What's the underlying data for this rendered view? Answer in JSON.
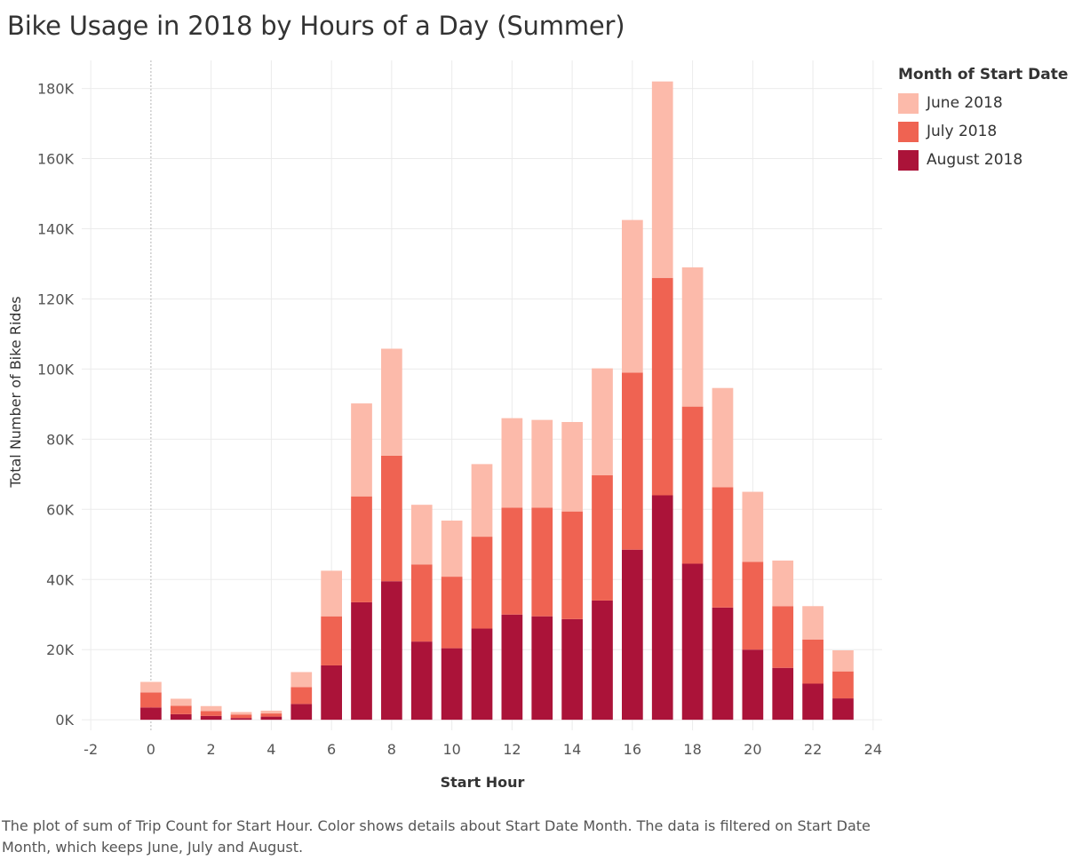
{
  "chart_data": {
    "type": "bar",
    "stacked": true,
    "title": "Bike Usage in 2018 by Hours of a Day (Summer)",
    "xlabel": "Start Hour",
    "ylabel": "Total Number of Bike Rides",
    "x": [
      0,
      1,
      2,
      3,
      4,
      5,
      6,
      7,
      8,
      9,
      10,
      11,
      12,
      13,
      14,
      15,
      16,
      17,
      18,
      19,
      20,
      21,
      22,
      23
    ],
    "x_ticks": [
      -2,
      0,
      2,
      4,
      6,
      8,
      10,
      12,
      14,
      16,
      18,
      20,
      22,
      24
    ],
    "x_tick_labels": [
      "-2",
      "0",
      "2",
      "4",
      "6",
      "8",
      "10",
      "12",
      "14",
      "16",
      "18",
      "20",
      "22",
      "24"
    ],
    "xlim": [
      -2.3,
      24.3
    ],
    "y_ticks": [
      0,
      20000,
      40000,
      60000,
      80000,
      100000,
      120000,
      140000,
      160000,
      180000
    ],
    "y_tick_labels": [
      "0K",
      "20K",
      "40K",
      "60K",
      "80K",
      "100K",
      "120K",
      "140K",
      "160K",
      "180K"
    ],
    "ylim": [
      -3000,
      188000
    ],
    "grid": true,
    "zero_line": "dotted vertical line at x=0",
    "legend_title": "Month of Start Date",
    "legend_position": "right",
    "series": [
      {
        "name": "August 2018",
        "color": "#ab1339",
        "values": [
          3500,
          1600,
          1100,
          500,
          900,
          4500,
          15500,
          33500,
          39500,
          22300,
          20400,
          26000,
          30000,
          29500,
          28700,
          34000,
          48500,
          64000,
          44500,
          32000,
          20000,
          14800,
          10300,
          6100
        ]
      },
      {
        "name": "July 2018",
        "color": "#ef6352",
        "values": [
          4300,
          2400,
          1400,
          1000,
          900,
          4800,
          14000,
          30200,
          35800,
          22000,
          20400,
          26200,
          30500,
          31000,
          30700,
          35700,
          50500,
          62000,
          44800,
          34300,
          25000,
          17600,
          12600,
          7700
        ]
      },
      {
        "name": "June 2018",
        "color": "#fcbaaa",
        "values": [
          3000,
          2000,
          1400,
          700,
          800,
          4300,
          13000,
          26500,
          30500,
          17000,
          16000,
          20700,
          25500,
          25000,
          25500,
          30500,
          43500,
          56000,
          39700,
          28300,
          20000,
          13000,
          9500,
          6000
        ]
      }
    ]
  },
  "legend": {
    "title": "Month of Start Date",
    "items": [
      {
        "label": "June 2018",
        "color": "#fcbaaa"
      },
      {
        "label": "July 2018",
        "color": "#ef6352"
      },
      {
        "label": "August 2018",
        "color": "#ab1339"
      }
    ]
  },
  "caption": "The plot of sum of Trip Count for Start Hour.  Color shows details about Start Date Month. The data is filtered on Start Date Month, which keeps June, July and August."
}
